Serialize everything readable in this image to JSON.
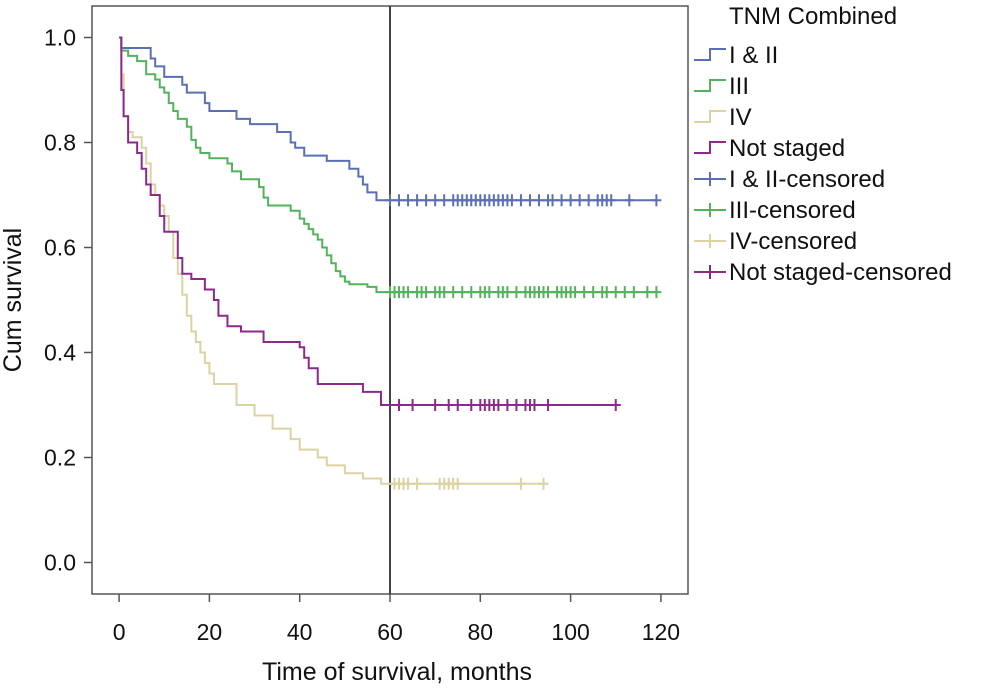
{
  "chart_data": {
    "type": "line",
    "subtype": "kaplan-meier",
    "xlabel": "Time of survival, months",
    "ylabel": "Cum survival",
    "xlim": [
      -6,
      126
    ],
    "ylim": [
      -0.06,
      1.06
    ],
    "xticks": [
      0,
      20,
      40,
      60,
      80,
      100,
      120
    ],
    "yticks": [
      0.0,
      0.2,
      0.4,
      0.6,
      0.8,
      1.0
    ],
    "xtick_labels": [
      "0",
      "20",
      "40",
      "60",
      "80",
      "100",
      "120"
    ],
    "ytick_labels": [
      "0.0",
      "0.2",
      "0.4",
      "0.6",
      "0.8",
      "1.0"
    ],
    "reference_line_x": 60,
    "grid": false,
    "legend_title": "TNM Combined",
    "legend_position": "outside-right-top",
    "series": [
      {
        "name": "I & II",
        "color": "#5b6fb8",
        "steps": [
          [
            0,
            1.0
          ],
          [
            0.5,
            0.98
          ],
          [
            7,
            0.96
          ],
          [
            8,
            0.945
          ],
          [
            10,
            0.925
          ],
          [
            14,
            0.91
          ],
          [
            15,
            0.895
          ],
          [
            19,
            0.875
          ],
          [
            20,
            0.86
          ],
          [
            26,
            0.845
          ],
          [
            29,
            0.835
          ],
          [
            35,
            0.82
          ],
          [
            38,
            0.8
          ],
          [
            39,
            0.79
          ],
          [
            41,
            0.775
          ],
          [
            46,
            0.765
          ],
          [
            51,
            0.75
          ],
          [
            53,
            0.735
          ],
          [
            54,
            0.72
          ],
          [
            55,
            0.705
          ],
          [
            57,
            0.69
          ],
          [
            119,
            0.69
          ]
        ],
        "censored_x": [
          60,
          62,
          64,
          66,
          68,
          70,
          72,
          74,
          75,
          76,
          77,
          78,
          79,
          80,
          81,
          82,
          83,
          84,
          85,
          86,
          87,
          89,
          91,
          93,
          95,
          96,
          98,
          100,
          102,
          104,
          106,
          107,
          108,
          109,
          113,
          119
        ]
      },
      {
        "name": "III",
        "color": "#52b35a",
        "steps": [
          [
            0,
            1.0
          ],
          [
            0.5,
            0.975
          ],
          [
            2,
            0.965
          ],
          [
            4,
            0.955
          ],
          [
            6,
            0.93
          ],
          [
            8,
            0.92
          ],
          [
            9,
            0.905
          ],
          [
            10,
            0.895
          ],
          [
            11,
            0.875
          ],
          [
            12,
            0.86
          ],
          [
            13,
            0.845
          ],
          [
            15,
            0.83
          ],
          [
            16,
            0.805
          ],
          [
            17,
            0.79
          ],
          [
            18,
            0.78
          ],
          [
            20,
            0.77
          ],
          [
            24,
            0.76
          ],
          [
            25,
            0.745
          ],
          [
            27,
            0.73
          ],
          [
            31,
            0.715
          ],
          [
            32,
            0.695
          ],
          [
            33,
            0.68
          ],
          [
            38,
            0.67
          ],
          [
            40,
            0.655
          ],
          [
            41,
            0.645
          ],
          [
            42,
            0.635
          ],
          [
            43,
            0.625
          ],
          [
            44,
            0.615
          ],
          [
            45,
            0.6
          ],
          [
            46,
            0.585
          ],
          [
            47,
            0.57
          ],
          [
            48,
            0.555
          ],
          [
            49,
            0.545
          ],
          [
            50,
            0.535
          ],
          [
            51,
            0.53
          ],
          [
            55,
            0.525
          ],
          [
            57,
            0.515
          ],
          [
            119,
            0.515
          ]
        ],
        "censored_x": [
          60,
          61,
          62,
          63,
          64,
          66,
          67,
          68,
          70,
          71,
          72,
          74,
          76,
          78,
          80,
          81,
          82,
          84,
          85,
          86,
          88,
          90,
          91,
          92,
          93,
          94,
          95,
          97,
          98,
          99,
          100,
          101,
          103,
          105,
          107,
          108,
          110,
          112,
          114,
          117,
          119
        ]
      },
      {
        "name": "IV",
        "color": "#dcd2a2",
        "steps": [
          [
            0,
            1.0
          ],
          [
            0.5,
            0.93
          ],
          [
            1,
            0.85
          ],
          [
            2,
            0.82
          ],
          [
            3,
            0.81
          ],
          [
            5,
            0.79
          ],
          [
            6,
            0.76
          ],
          [
            7,
            0.72
          ],
          [
            8,
            0.7
          ],
          [
            9,
            0.68
          ],
          [
            10,
            0.66
          ],
          [
            11,
            0.63
          ],
          [
            12,
            0.58
          ],
          [
            13,
            0.55
          ],
          [
            14,
            0.51
          ],
          [
            15,
            0.47
          ],
          [
            16,
            0.44
          ],
          [
            17,
            0.42
          ],
          [
            18,
            0.4
          ],
          [
            19,
            0.38
          ],
          [
            20,
            0.36
          ],
          [
            21,
            0.34
          ],
          [
            26,
            0.3
          ],
          [
            30,
            0.28
          ],
          [
            34,
            0.255
          ],
          [
            38,
            0.235
          ],
          [
            40,
            0.215
          ],
          [
            44,
            0.2
          ],
          [
            46,
            0.185
          ],
          [
            50,
            0.17
          ],
          [
            54,
            0.16
          ],
          [
            58,
            0.15
          ],
          [
            95,
            0.15
          ]
        ],
        "censored_x": [
          61,
          62,
          63,
          64,
          66,
          71,
          72,
          73,
          74,
          75,
          89,
          94
        ]
      },
      {
        "name": "Not staged",
        "color": "#8c2a8c",
        "steps": [
          [
            0,
            1.0
          ],
          [
            0.5,
            0.9
          ],
          [
            1,
            0.85
          ],
          [
            2,
            0.8
          ],
          [
            4,
            0.78
          ],
          [
            5,
            0.75
          ],
          [
            6,
            0.72
          ],
          [
            7,
            0.7
          ],
          [
            9,
            0.66
          ],
          [
            10,
            0.63
          ],
          [
            13,
            0.58
          ],
          [
            14,
            0.55
          ],
          [
            16,
            0.54
          ],
          [
            19,
            0.52
          ],
          [
            21,
            0.5
          ],
          [
            22,
            0.47
          ],
          [
            24,
            0.45
          ],
          [
            27,
            0.44
          ],
          [
            32,
            0.42
          ],
          [
            40,
            0.41
          ],
          [
            41,
            0.39
          ],
          [
            42,
            0.37
          ],
          [
            44,
            0.34
          ],
          [
            54,
            0.325
          ],
          [
            58,
            0.3
          ],
          [
            110,
            0.3
          ]
        ],
        "censored_x": [
          62,
          65,
          70,
          73,
          75,
          78,
          80,
          81,
          82,
          83,
          84,
          86,
          88,
          90,
          91,
          92,
          95,
          110
        ]
      }
    ]
  },
  "legend": {
    "title": "TNM Combined",
    "items": [
      {
        "label": "I & II",
        "color": "#5b6fb8",
        "symbol": "line"
      },
      {
        "label": "III",
        "color": "#52b35a",
        "symbol": "line"
      },
      {
        "label": "IV",
        "color": "#dcd2a2",
        "symbol": "line"
      },
      {
        "label": "Not staged",
        "color": "#8c2a8c",
        "symbol": "line"
      },
      {
        "label": "I & II-censored",
        "color": "#5b6fb8",
        "symbol": "plus"
      },
      {
        "label": "III-censored",
        "color": "#52b35a",
        "symbol": "plus"
      },
      {
        "label": "IV-censored",
        "color": "#dcd2a2",
        "symbol": "plus"
      },
      {
        "label": "Not staged-censored",
        "color": "#8c2a8c",
        "symbol": "plus"
      }
    ]
  }
}
